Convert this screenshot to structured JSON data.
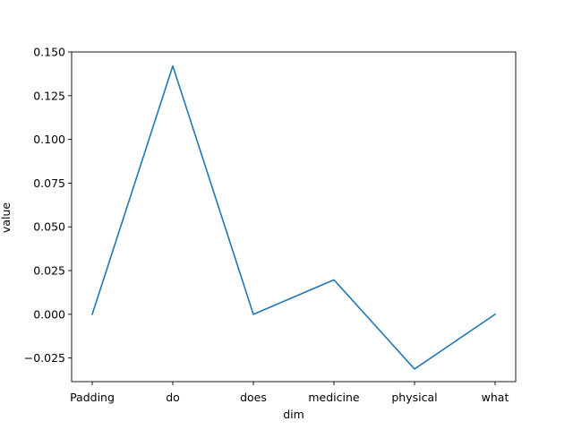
{
  "chart_data": {
    "type": "line",
    "title": "",
    "xlabel": "dim",
    "ylabel": "value",
    "categories": [
      "Padding",
      "do",
      "does",
      "medicine",
      "physical",
      "what"
    ],
    "series": [
      {
        "values": [
          0.0,
          0.142,
          0.0,
          0.0197,
          -0.0313,
          0.0
        ],
        "color": "#1f77b4"
      }
    ],
    "ylim": [
      -0.0385,
      0.15
    ],
    "yticks": [
      -0.025,
      0.0,
      0.025,
      0.05,
      0.075,
      0.1,
      0.125,
      0.15
    ],
    "ytick_labels": [
      "−0.025",
      "0.000",
      "0.025",
      "0.050",
      "0.075",
      "0.100",
      "0.125",
      "0.150"
    ],
    "grid": false,
    "legend": "none"
  }
}
